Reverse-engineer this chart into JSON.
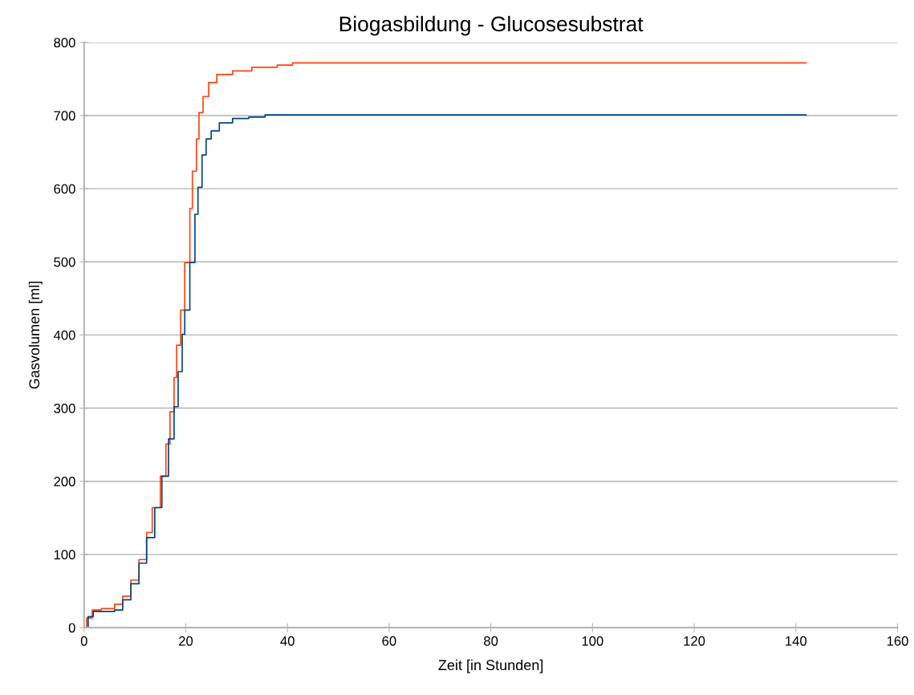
{
  "chart_data": {
    "type": "step",
    "title": "Biogasbildung - Glucosesubstrat",
    "xlabel": "Zeit [in Stunden]",
    "ylabel": "Gasvolumen [ml]",
    "xlim": [
      0,
      160
    ],
    "xticks": [
      0,
      20,
      40,
      60,
      80,
      100,
      120,
      140,
      160
    ],
    "ylim": [
      0,
      800
    ],
    "yticks": [
      0,
      100,
      200,
      300,
      400,
      500,
      600,
      700,
      800
    ],
    "grid": "y",
    "legend": false,
    "series": [
      {
        "color": "#ff420e",
        "x": [
          0,
          0.5,
          1.6,
          3.4,
          6,
          7.6,
          9.2,
          10.8,
          12.3,
          13.4,
          15,
          16.1,
          16.9,
          17.7,
          18.2,
          19,
          19.8,
          20.8,
          21.3,
          22.1,
          22.6,
          23.4,
          24.5,
          26.1,
          29.2,
          33,
          38,
          41,
          142
        ],
        "values": [
          0,
          13,
          24,
          26,
          32,
          43,
          65,
          93,
          130,
          164,
          207,
          251,
          295,
          342,
          386,
          434,
          499,
          573,
          624,
          668,
          704,
          726,
          745,
          756,
          761,
          766,
          769,
          772,
          772
        ]
      },
      {
        "color": "#004586",
        "x": [
          0,
          0.8,
          1.8,
          6,
          7.6,
          9.2,
          10.8,
          12.3,
          13.9,
          15.3,
          16.6,
          17.7,
          18.5,
          19.3,
          19.8,
          20.8,
          21.8,
          22.4,
          23.2,
          24,
          25,
          26.6,
          29.2,
          32.4,
          35.6,
          142
        ],
        "values": [
          0,
          15,
          22,
          24,
          38,
          60,
          88,
          123,
          164,
          207,
          258,
          302,
          350,
          401,
          434,
          499,
          565,
          602,
          646,
          668,
          679,
          690,
          696,
          698,
          701,
          701
        ]
      }
    ]
  }
}
